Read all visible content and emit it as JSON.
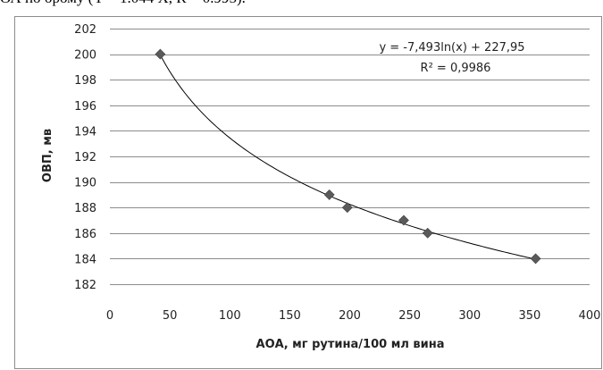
{
  "header_text": "ОА по брому (Y = 1.044 X, R = 0.995).",
  "chart_data": {
    "type": "scatter",
    "points": [
      {
        "x": 42,
        "y": 200
      },
      {
        "x": 183,
        "y": 189
      },
      {
        "x": 198,
        "y": 188
      },
      {
        "x": 245,
        "y": 187
      },
      {
        "x": 265,
        "y": 186
      },
      {
        "x": 355,
        "y": 184
      }
    ],
    "trendline": {
      "type": "logarithmic",
      "a": -7.493,
      "b": 227.95,
      "x_from": 42,
      "x_to": 355
    },
    "equation_label": "y = -7,493ln(x) + 227,95",
    "r2_label": "R² = 0,9986",
    "xlabel": "АОА, мг рутина/100 мл вина",
    "ylabel": "ОВП, мв",
    "xlim": [
      0,
      400
    ],
    "ylim": [
      182,
      202
    ],
    "x_ticks": [
      0,
      50,
      100,
      150,
      200,
      250,
      300,
      350,
      400
    ],
    "y_ticks": [
      182,
      184,
      186,
      188,
      190,
      192,
      194,
      196,
      198,
      200,
      202
    ],
    "grid": "horizontal",
    "marker": "diamond",
    "marker_color": "#5a5a5a",
    "line_color": "#000000"
  }
}
